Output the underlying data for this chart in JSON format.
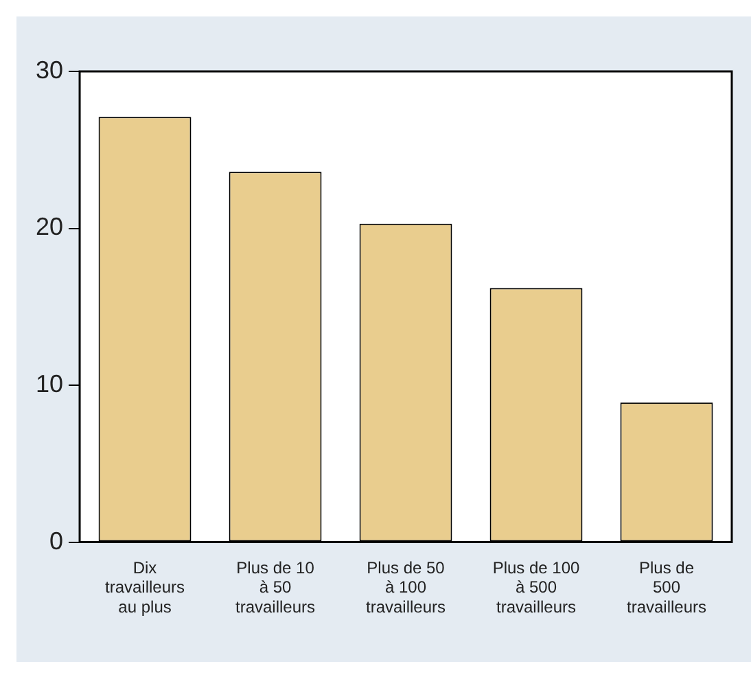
{
  "chart_data": {
    "type": "bar",
    "categories": [
      "Dix\ntravailleurs\nau plus",
      "Plus de 10\nà 50\ntravailleurs",
      "Plus de 50\nà 100\ntravailleurs",
      "Plus de 100\nà 500\ntravailleurs",
      "Plus de\n500\ntravailleurs"
    ],
    "values": [
      27.1,
      23.6,
      20.3,
      16.2,
      8.9
    ],
    "color": "#e9cd8e",
    "ylim": [
      0,
      30
    ],
    "yticks": [
      0,
      10,
      20,
      30
    ],
    "grid": false,
    "legend": false
  }
}
